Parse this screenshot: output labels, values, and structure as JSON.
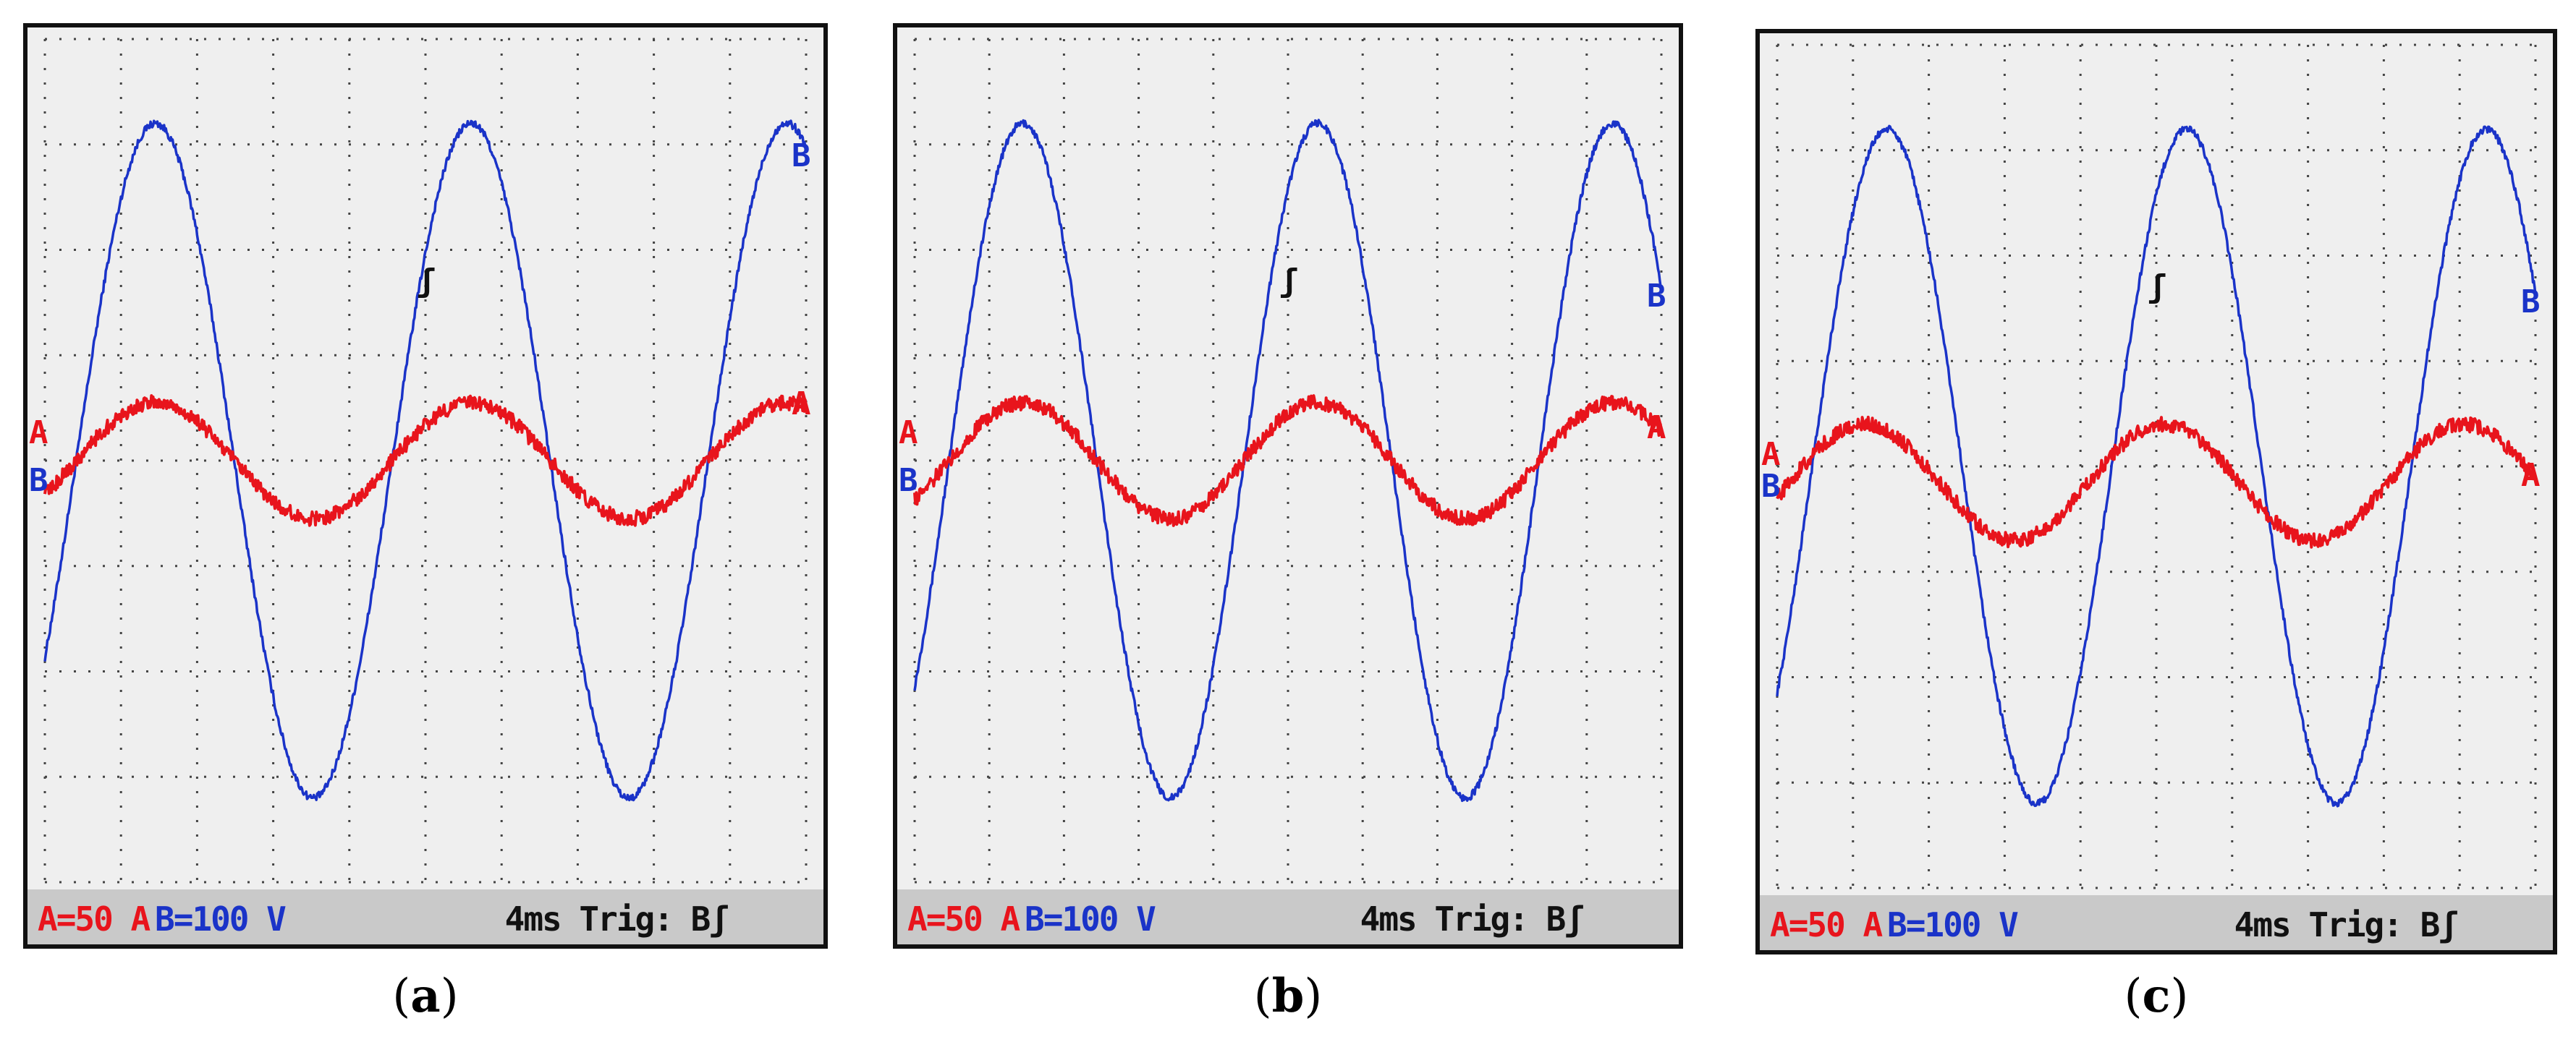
{
  "chart_data": [
    {
      "type": "line",
      "caption": "a",
      "x_units": "div",
      "xlim": [
        0,
        10
      ],
      "ylim": [
        -4,
        4
      ],
      "grid": true,
      "status": {
        "ch_a": "A=50 A",
        "ch_b": "B=100 V",
        "time": "4ms Trig: Bʃ"
      },
      "markers": {
        "a_left": "A",
        "a_right": "A",
        "b_left": "B",
        "b_right": "B",
        "trigger": "ʃ"
      },
      "series": [
        {
          "name": "B",
          "unit": "V/div 100",
          "color": "#1a33c8",
          "amplitude_div": 3.2,
          "offset_div": 0.0,
          "period_div": 4.15,
          "peak_x_div": 1.45
        },
        {
          "name": "A",
          "unit": "A/div 50",
          "color": "#e8141c",
          "amplitude_div": 0.55,
          "offset_div": 0.0,
          "period_div": 4.15,
          "peak_x_div": 1.45
        }
      ]
    },
    {
      "type": "line",
      "caption": "b",
      "x_units": "div",
      "xlim": [
        0,
        10
      ],
      "ylim": [
        -4,
        4
      ],
      "grid": true,
      "status": {
        "ch_a": "A=50 A",
        "ch_b": "B=100 V",
        "time": "4ms Trig: Bʃ"
      },
      "markers": {
        "a_left": "A",
        "a_right": "A",
        "b_left": "B",
        "b_right": "B",
        "trigger": "ʃ"
      },
      "series": [
        {
          "name": "B",
          "unit": "V/div 100",
          "color": "#1a33c8",
          "amplitude_div": 3.2,
          "offset_div": 0.0,
          "period_div": 3.95,
          "peak_x_div": 1.45
        },
        {
          "name": "A",
          "unit": "A/div 50",
          "color": "#e8141c",
          "amplitude_div": 0.55,
          "offset_div": 0.0,
          "period_div": 3.95,
          "peak_x_div": 1.45
        }
      ]
    },
    {
      "type": "line",
      "caption": "c",
      "x_units": "div",
      "xlim": [
        0,
        10
      ],
      "ylim": [
        -4,
        4
      ],
      "grid": true,
      "status": {
        "ch_a": "A=50 A",
        "ch_b": "B=100 V",
        "time": "4ms Trig: Bʃ"
      },
      "markers": {
        "a_left": "A",
        "a_right": "A",
        "b_left": "B",
        "b_right": "B",
        "trigger": "ʃ"
      },
      "series": [
        {
          "name": "B",
          "unit": "V/div 100",
          "color": "#1a33c8",
          "amplitude_div": 3.2,
          "offset_div": 0.0,
          "period_div": 3.95,
          "peak_x_div": 1.45
        },
        {
          "name": "A",
          "unit": "A/div 50",
          "color": "#e8141c",
          "amplitude_div": 0.55,
          "offset_div": -0.15,
          "period_div": 3.95,
          "peak_x_div": 1.15
        }
      ]
    }
  ]
}
